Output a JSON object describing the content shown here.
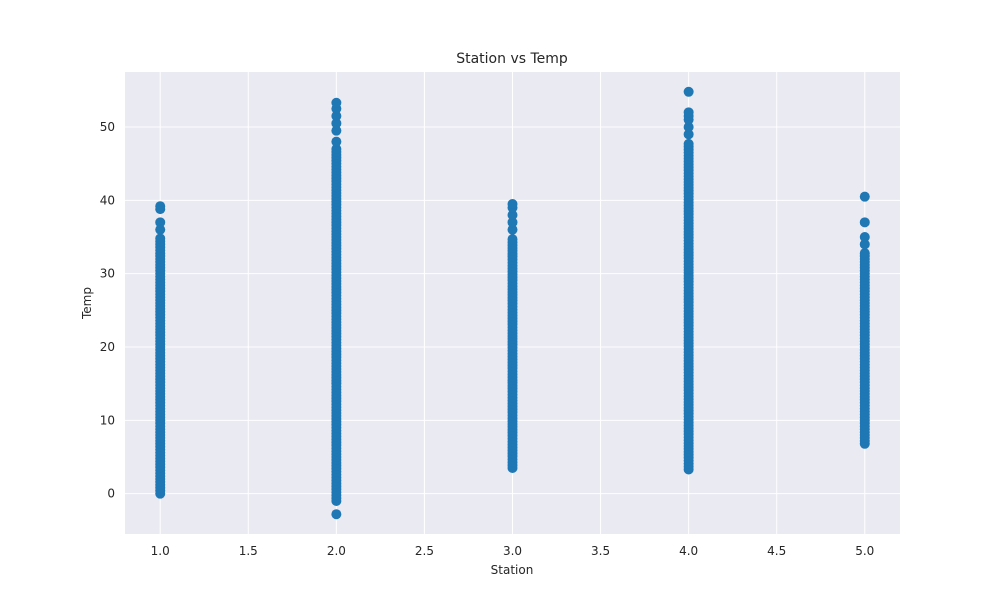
{
  "chart_data": {
    "type": "scatter",
    "title": "Station vs Temp",
    "xlabel": "Station",
    "ylabel": "Temp",
    "xlim": [
      0.8,
      5.2
    ],
    "ylim": [
      -5.5,
      57.5
    ],
    "xticks": [
      1.0,
      1.5,
      2.0,
      2.5,
      3.0,
      3.5,
      4.0,
      4.5,
      5.0
    ],
    "xtick_labels": [
      "1.0",
      "1.5",
      "2.0",
      "2.5",
      "3.0",
      "3.5",
      "4.0",
      "4.5",
      "5.0"
    ],
    "yticks": [
      0,
      10,
      20,
      30,
      40,
      50
    ],
    "ytick_labels": [
      "0",
      "10",
      "20",
      "30",
      "40",
      "50"
    ],
    "grid": true,
    "colors": {
      "marker": "#1f77b4",
      "plot_bg": "#eaeaf2",
      "grid": "#ffffff"
    },
    "series": [
      {
        "name": "Temp",
        "x_station": 1,
        "range": [
          0,
          35
        ],
        "outliers": [
          36,
          37,
          38.8,
          39.2
        ]
      },
      {
        "name": "Temp",
        "x_station": 2,
        "range": [
          -1,
          47
        ],
        "outliers": [
          -2.8,
          48,
          49.5,
          50.5,
          51.5,
          52.5,
          53.3
        ]
      },
      {
        "name": "Temp",
        "x_station": 3,
        "range": [
          3.5,
          35
        ],
        "outliers": [
          36,
          37,
          38,
          39,
          39.5
        ]
      },
      {
        "name": "Temp",
        "x_station": 4,
        "range": [
          3.3,
          48
        ],
        "outliers": [
          49,
          50,
          51,
          51.5,
          52,
          54.8
        ]
      },
      {
        "name": "Temp",
        "x_station": 5,
        "range": [
          6.8,
          33
        ],
        "outliers": [
          34,
          35,
          37,
          40.5
        ]
      }
    ]
  }
}
